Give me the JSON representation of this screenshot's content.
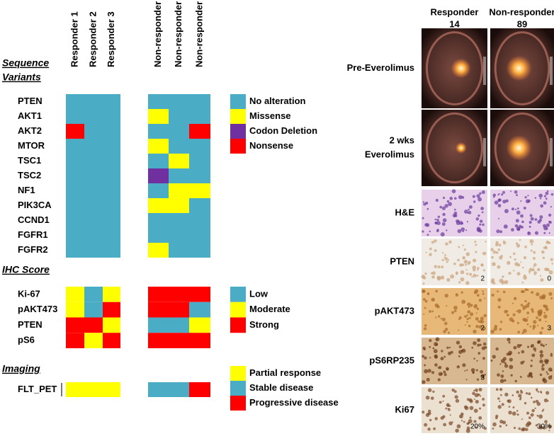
{
  "heatmap": {
    "responders": [
      "Responder 1",
      "Responder 2",
      "Responder 3"
    ],
    "non_responders": [
      "Non-responder 1",
      "Non-responder 2",
      "Non-responder 3"
    ],
    "sections": [
      {
        "title_lines": [
          "Sequence",
          "Variants"
        ],
        "legend": [
          {
            "label": "No alteration",
            "color": "#4bacc6"
          },
          {
            "label": "Missense",
            "color": "#ffff00"
          },
          {
            "label": "Codon Deletion",
            "color": "#7030a0"
          },
          {
            "label": "Nonsense",
            "color": "#ff0000"
          }
        ],
        "rows": [
          {
            "label": "PTEN",
            "cells": [
              0,
              0,
              0,
              0,
              0,
              0
            ]
          },
          {
            "label": "AKT1",
            "cells": [
              0,
              0,
              0,
              1,
              0,
              0
            ]
          },
          {
            "label": "AKT2",
            "cells": [
              3,
              0,
              0,
              0,
              0,
              3
            ]
          },
          {
            "label": "MTOR",
            "cells": [
              0,
              0,
              0,
              1,
              0,
              0
            ]
          },
          {
            "label": "TSC1",
            "cells": [
              0,
              0,
              0,
              0,
              1,
              0
            ]
          },
          {
            "label": "TSC2",
            "cells": [
              0,
              0,
              0,
              2,
              0,
              0
            ]
          },
          {
            "label": "NF1",
            "cells": [
              0,
              0,
              0,
              0,
              1,
              1
            ]
          },
          {
            "label": "PIK3CA",
            "cells": [
              0,
              0,
              0,
              1,
              1,
              0
            ]
          },
          {
            "label": "CCND1",
            "cells": [
              0,
              0,
              0,
              0,
              0,
              0
            ]
          },
          {
            "label": "FGFR1",
            "cells": [
              0,
              0,
              0,
              0,
              0,
              0
            ]
          },
          {
            "label": "FGFR2",
            "cells": [
              0,
              0,
              0,
              1,
              0,
              0
            ]
          }
        ]
      },
      {
        "title_lines": [
          "IHC Score"
        ],
        "legend": [
          {
            "label": "Low",
            "color": "#4bacc6"
          },
          {
            "label": "Moderate",
            "color": "#ffff00"
          },
          {
            "label": "Strong",
            "color": "#ff0000"
          }
        ],
        "rows": [
          {
            "label": "Ki-67",
            "cells": [
              1,
              0,
              1,
              2,
              2,
              2
            ]
          },
          {
            "label": "pAKT473",
            "cells": [
              1,
              0,
              2,
              2,
              2,
              0
            ]
          },
          {
            "label": "PTEN",
            "cells": [
              2,
              2,
              1,
              0,
              0,
              1
            ]
          },
          {
            "label": "pS6",
            "cells": [
              2,
              1,
              2,
              2,
              2,
              2
            ]
          }
        ]
      },
      {
        "title_lines": [
          "Imaging"
        ],
        "legend": [
          {
            "label": "Partial response",
            "color": "#ffff00"
          },
          {
            "label": "Stable disease",
            "color": "#4bacc6"
          },
          {
            "label": "Progressive disease",
            "color": "#ff0000"
          }
        ],
        "rows": [
          {
            "label": "FLT_PET",
            "cells": [
              0,
              0,
              0,
              1,
              1,
              2
            ]
          }
        ]
      }
    ]
  },
  "image_panel": {
    "columns": [
      {
        "label_lines": [
          "Responder",
          "14"
        ]
      },
      {
        "label_lines": [
          "Non-responder",
          "89"
        ]
      }
    ],
    "rows": [
      {
        "label_lines": [
          "Pre-Everolimus"
        ],
        "kind": "pet",
        "annotations": []
      },
      {
        "label_lines": [
          "2 wks",
          "Everolimus"
        ],
        "kind": "pet",
        "annotations": []
      },
      {
        "label_lines": [
          "H&E"
        ],
        "kind": "he",
        "annotations": []
      },
      {
        "label_lines": [
          "PTEN"
        ],
        "kind": "ihc-light",
        "annotations": [
          {
            "col": 0,
            "text": "2"
          },
          {
            "col": 1,
            "text": "0"
          }
        ]
      },
      {
        "label_lines": [
          "pAKT473"
        ],
        "kind": "ihc",
        "annotations": [
          {
            "col": 0,
            "text": "2"
          },
          {
            "col": 1,
            "text": "3"
          }
        ]
      },
      {
        "label_lines": [
          "pS6RP235"
        ],
        "kind": "ihc-nuc",
        "annotations": [
          {
            "col": 0,
            "text": "3"
          }
        ]
      },
      {
        "label_lines": [
          "Ki67"
        ],
        "kind": "ihc-nuc-light",
        "annotations": [
          {
            "col": 0,
            "text": "20%"
          },
          {
            "col": 1,
            "text": "30%"
          }
        ]
      }
    ]
  }
}
